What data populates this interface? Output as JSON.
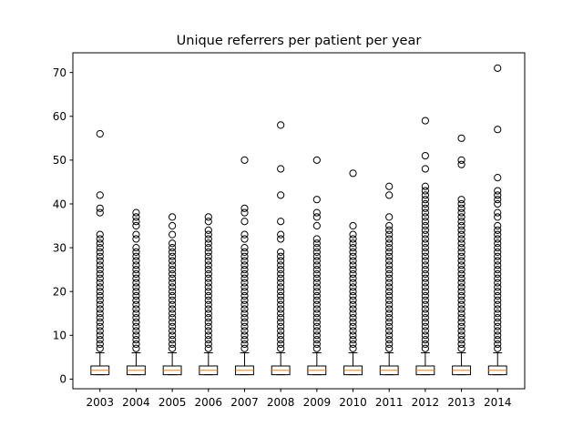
{
  "chart_data": {
    "type": "box",
    "title": "Unique referrers per patient per year",
    "xlabel": "",
    "ylabel": "",
    "categories": [
      "2003",
      "2004",
      "2005",
      "2006",
      "2007",
      "2008",
      "2009",
      "2010",
      "2011",
      "2012",
      "2013",
      "2014"
    ],
    "ylim": [
      -2.2,
      74.5
    ],
    "yticks": [
      0,
      10,
      20,
      30,
      40,
      50,
      60,
      70
    ],
    "grid": false,
    "legend": "none",
    "colors": {
      "box": "#000000",
      "median": "#ff7f0e",
      "flier": "#000000"
    },
    "boxes": [
      {
        "year": "2003",
        "q1": 1,
        "median": 2,
        "q3": 3,
        "whisker_low": 1,
        "whisker_high": 6,
        "outliers": [
          56,
          42,
          39,
          38,
          33,
          32,
          31,
          30,
          29,
          28,
          27,
          26,
          25,
          24,
          23,
          22,
          21,
          20,
          19,
          18,
          17,
          16,
          15,
          14,
          13,
          12,
          11,
          10,
          9,
          8,
          7
        ]
      },
      {
        "year": "2004",
        "q1": 1,
        "median": 2,
        "q3": 3,
        "whisker_low": 1,
        "whisker_high": 6,
        "outliers": [
          38,
          37,
          36,
          35,
          33,
          32,
          30,
          29,
          28,
          27,
          26,
          25,
          24,
          23,
          22,
          21,
          20,
          19,
          18,
          17,
          16,
          15,
          14,
          13,
          12,
          11,
          10,
          9,
          8,
          7
        ]
      },
      {
        "year": "2005",
        "q1": 1,
        "median": 2,
        "q3": 3,
        "whisker_low": 1,
        "whisker_high": 6,
        "outliers": [
          37,
          35,
          33,
          31,
          30,
          29,
          28,
          27,
          26,
          25,
          24,
          23,
          22,
          21,
          20,
          19,
          18,
          17,
          16,
          15,
          14,
          13,
          12,
          11,
          10,
          9,
          8,
          7
        ]
      },
      {
        "year": "2006",
        "q1": 1,
        "median": 2,
        "q3": 3,
        "whisker_low": 1,
        "whisker_high": 6,
        "outliers": [
          37,
          36,
          34,
          33,
          32,
          31,
          30,
          29,
          28,
          27,
          26,
          25,
          24,
          23,
          22,
          21,
          20,
          19,
          18,
          17,
          16,
          15,
          14,
          13,
          12,
          11,
          10,
          9,
          8,
          7
        ]
      },
      {
        "year": "2007",
        "q1": 1,
        "median": 2,
        "q3": 3,
        "whisker_low": 1,
        "whisker_high": 6,
        "outliers": [
          50,
          39,
          38,
          36,
          33,
          32,
          30,
          29,
          28,
          27,
          26,
          25,
          24,
          23,
          22,
          21,
          20,
          19,
          18,
          17,
          16,
          15,
          14,
          13,
          12,
          11,
          10,
          9,
          8,
          7
        ]
      },
      {
        "year": "2008",
        "q1": 1,
        "median": 2,
        "q3": 3,
        "whisker_low": 1,
        "whisker_high": 6,
        "outliers": [
          58,
          48,
          42,
          36,
          33,
          32,
          29,
          28,
          27,
          26,
          25,
          24,
          23,
          22,
          21,
          20,
          19,
          18,
          17,
          16,
          15,
          14,
          13,
          12,
          11,
          10,
          9,
          8,
          7
        ]
      },
      {
        "year": "2009",
        "q1": 1,
        "median": 2,
        "q3": 3,
        "whisker_low": 1,
        "whisker_high": 6,
        "outliers": [
          50,
          41,
          38,
          37,
          35,
          32,
          31,
          30,
          29,
          28,
          27,
          26,
          25,
          24,
          23,
          22,
          21,
          20,
          19,
          18,
          17,
          16,
          15,
          14,
          13,
          12,
          11,
          10,
          9,
          8,
          7
        ]
      },
      {
        "year": "2010",
        "q1": 1,
        "median": 2,
        "q3": 3,
        "whisker_low": 1,
        "whisker_high": 6,
        "outliers": [
          47,
          35,
          33,
          32,
          31,
          30,
          29,
          28,
          27,
          26,
          25,
          24,
          23,
          22,
          21,
          20,
          19,
          18,
          17,
          16,
          15,
          14,
          13,
          12,
          11,
          10,
          9,
          8,
          7
        ]
      },
      {
        "year": "2011",
        "q1": 1,
        "median": 2,
        "q3": 3,
        "whisker_low": 1,
        "whisker_high": 6,
        "outliers": [
          44,
          42,
          37,
          35,
          34,
          33,
          32,
          31,
          30,
          29,
          28,
          27,
          26,
          25,
          24,
          23,
          22,
          21,
          20,
          19,
          18,
          17,
          16,
          15,
          14,
          13,
          12,
          11,
          10,
          9,
          8,
          7
        ]
      },
      {
        "year": "2012",
        "q1": 1,
        "median": 2,
        "q3": 3,
        "whisker_low": 1,
        "whisker_high": 6,
        "outliers": [
          59,
          51,
          48,
          44,
          43,
          42,
          41,
          40,
          39,
          38,
          37,
          36,
          35,
          34,
          33,
          32,
          31,
          30,
          29,
          28,
          27,
          26,
          25,
          24,
          23,
          22,
          21,
          20,
          19,
          18,
          17,
          16,
          15,
          14,
          13,
          12,
          11,
          10,
          9,
          8,
          7
        ]
      },
      {
        "year": "2013",
        "q1": 1,
        "median": 2,
        "q3": 3,
        "whisker_low": 1,
        "whisker_high": 6,
        "outliers": [
          55,
          50,
          49,
          41,
          40,
          39,
          38,
          37,
          36,
          35,
          34,
          33,
          32,
          31,
          30,
          29,
          28,
          27,
          26,
          25,
          24,
          23,
          22,
          21,
          20,
          19,
          18,
          17,
          16,
          15,
          14,
          13,
          12,
          11,
          10,
          9,
          8,
          7
        ]
      },
      {
        "year": "2014",
        "q1": 1,
        "median": 2,
        "q3": 3,
        "whisker_low": 1,
        "whisker_high": 6,
        "outliers": [
          71,
          57,
          46,
          43,
          42,
          41,
          40,
          38,
          37,
          35,
          34,
          33,
          32,
          31,
          30,
          29,
          28,
          27,
          26,
          25,
          24,
          23,
          22,
          21,
          20,
          19,
          18,
          17,
          16,
          15,
          14,
          13,
          12,
          11,
          10,
          9,
          8,
          7
        ]
      }
    ]
  }
}
